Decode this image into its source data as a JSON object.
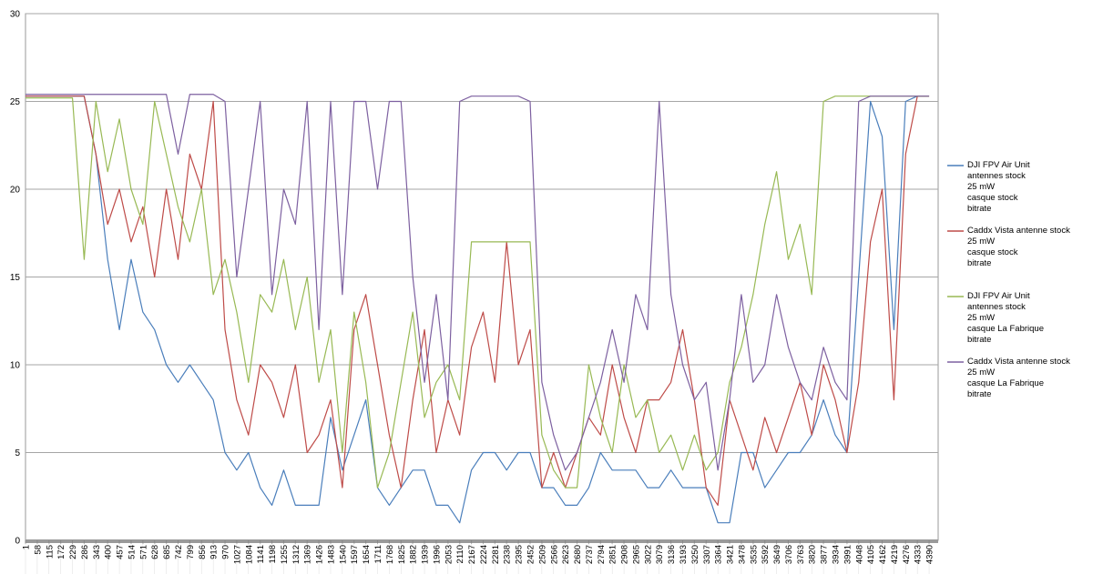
{
  "chart_data": {
    "type": "line",
    "x": [
      1,
      58,
      115,
      172,
      229,
      286,
      343,
      400,
      457,
      514,
      571,
      628,
      685,
      742,
      799,
      856,
      913,
      970,
      1027,
      1084,
      1141,
      1198,
      1255,
      1312,
      1369,
      1426,
      1483,
      1540,
      1597,
      1654,
      1711,
      1768,
      1825,
      1882,
      1939,
      1996,
      2053,
      2110,
      2167,
      2224,
      2281,
      2338,
      2395,
      2452,
      2509,
      2566,
      2623,
      2680,
      2737,
      2794,
      2851,
      2908,
      2965,
      3022,
      3079,
      3136,
      3193,
      3250,
      3307,
      3364,
      3421,
      3478,
      3535,
      3592,
      3649,
      3706,
      3763,
      3820,
      3877,
      3934,
      3991,
      4048,
      4105,
      4162,
      4219,
      4276,
      4333,
      4390
    ],
    "xticks": [
      1,
      58,
      115,
      172,
      229,
      286,
      343,
      400,
      457,
      514,
      571,
      628,
      685,
      742,
      799,
      856,
      913,
      970,
      1027,
      1084,
      1141,
      1198,
      1255,
      1312,
      1369,
      1426,
      1483,
      1540,
      1597,
      1654,
      1711,
      1768,
      1825,
      1882,
      1939,
      1996,
      2053,
      2110,
      2167,
      2224,
      2281,
      2338,
      2395,
      2452,
      2509,
      2566,
      2623,
      2680,
      2737,
      2794,
      2851,
      2908,
      2965,
      3022,
      3079,
      3136,
      3193,
      3250,
      3307,
      3364,
      3421,
      3478,
      3535,
      3592,
      3649,
      3706,
      3763,
      3820,
      3877,
      3934,
      3991,
      4048,
      4105,
      4162,
      4219,
      4276,
      4333,
      4390
    ],
    "xlim": [
      1,
      4434
    ],
    "ylim": [
      0,
      30
    ],
    "yticks": [
      0,
      5,
      10,
      15,
      20,
      25,
      30
    ],
    "grid": true,
    "legend": "right",
    "series": [
      {
        "name": "DJI FPV Air Unit\nantennes stock\n25 mW\ncasque stock\nbitrate",
        "color": "#4a7ebb",
        "values": [
          25.3,
          25.3,
          25.3,
          25.3,
          25.3,
          25.3,
          22,
          16,
          12,
          16,
          13,
          12,
          10,
          9,
          10,
          9,
          8,
          5,
          4,
          5,
          3,
          2,
          4,
          2,
          2,
          2,
          7,
          4,
          6,
          8,
          3,
          2,
          3,
          4,
          4,
          2,
          2,
          1,
          4,
          5,
          5,
          4,
          5,
          5,
          3,
          3,
          2,
          2,
          3,
          5,
          4,
          4,
          4,
          3,
          3,
          4,
          3,
          3,
          3,
          1,
          1,
          5,
          5,
          3,
          4,
          5,
          5,
          6,
          8,
          6,
          5,
          15,
          25,
          23,
          12,
          25,
          25.3,
          25.3
        ]
      },
      {
        "name": "Caddx Vista antenne stock\n25 mW\n casque stock\nbitrate",
        "color": "#be4b48",
        "values": [
          25.3,
          25.3,
          25.3,
          25.3,
          25.3,
          25.3,
          22,
          18,
          20,
          17,
          19,
          15,
          20,
          16,
          22,
          20,
          25,
          12,
          8,
          6,
          10,
          9,
          7,
          10,
          5,
          6,
          8,
          3,
          12,
          14,
          10,
          6,
          3,
          8,
          12,
          5,
          8,
          6,
          11,
          13,
          9,
          17,
          10,
          12,
          3,
          5,
          3,
          5,
          7,
          6,
          10,
          7,
          5,
          8,
          8,
          9,
          12,
          8,
          3,
          2,
          8,
          6,
          4,
          7,
          5,
          7,
          9,
          6,
          10,
          8,
          5,
          9,
          17,
          20,
          8,
          22,
          25.3,
          25.3
        ]
      },
      {
        "name": "DJI FPV Air Unit\nantennes stock\n25 mW\ncasque La Fabrique\nbitrate",
        "color": "#98b954",
        "values": [
          25.2,
          25.2,
          25.2,
          25.2,
          25.2,
          16,
          25,
          21,
          24,
          20,
          18,
          25,
          22,
          19,
          17,
          20,
          14,
          16,
          13,
          9,
          14,
          13,
          16,
          12,
          15,
          9,
          12,
          5,
          13,
          9,
          3,
          5,
          9,
          13,
          7,
          9,
          10,
          8,
          17,
          17,
          17,
          17,
          17,
          17,
          6,
          4,
          3,
          3,
          10,
          7,
          5,
          10,
          7,
          8,
          5,
          6,
          4,
          6,
          4,
          5,
          9,
          11,
          14,
          18,
          21,
          16,
          18,
          14,
          25,
          25.3,
          25.3,
          25.3,
          25.3,
          25.3,
          25.3,
          25.3,
          25.3,
          25.3
        ]
      },
      {
        "name": "Caddx Vista antenne stock\n25 mW\n casque La Fabrique\nbitrate",
        "color": "#7d60a0",
        "values": [
          25.4,
          25.4,
          25.4,
          25.4,
          25.4,
          25.4,
          25.4,
          25.4,
          25.4,
          25.4,
          25.4,
          25.4,
          25.4,
          22,
          25.4,
          25.4,
          25.4,
          25,
          15,
          20,
          25,
          14,
          20,
          18,
          25,
          12,
          25,
          14,
          25,
          25,
          20,
          25,
          25,
          15,
          9,
          14,
          8,
          25,
          25.3,
          25.3,
          25.3,
          25.3,
          25.3,
          25,
          9,
          6,
          4,
          5,
          7,
          9,
          12,
          9,
          14,
          12,
          25,
          14,
          10,
          8,
          9,
          4,
          8,
          14,
          9,
          10,
          14,
          11,
          9,
          8,
          11,
          9,
          8,
          25,
          25.3,
          25.3,
          25.3,
          25.3,
          25.3,
          25.3
        ]
      }
    ]
  }
}
